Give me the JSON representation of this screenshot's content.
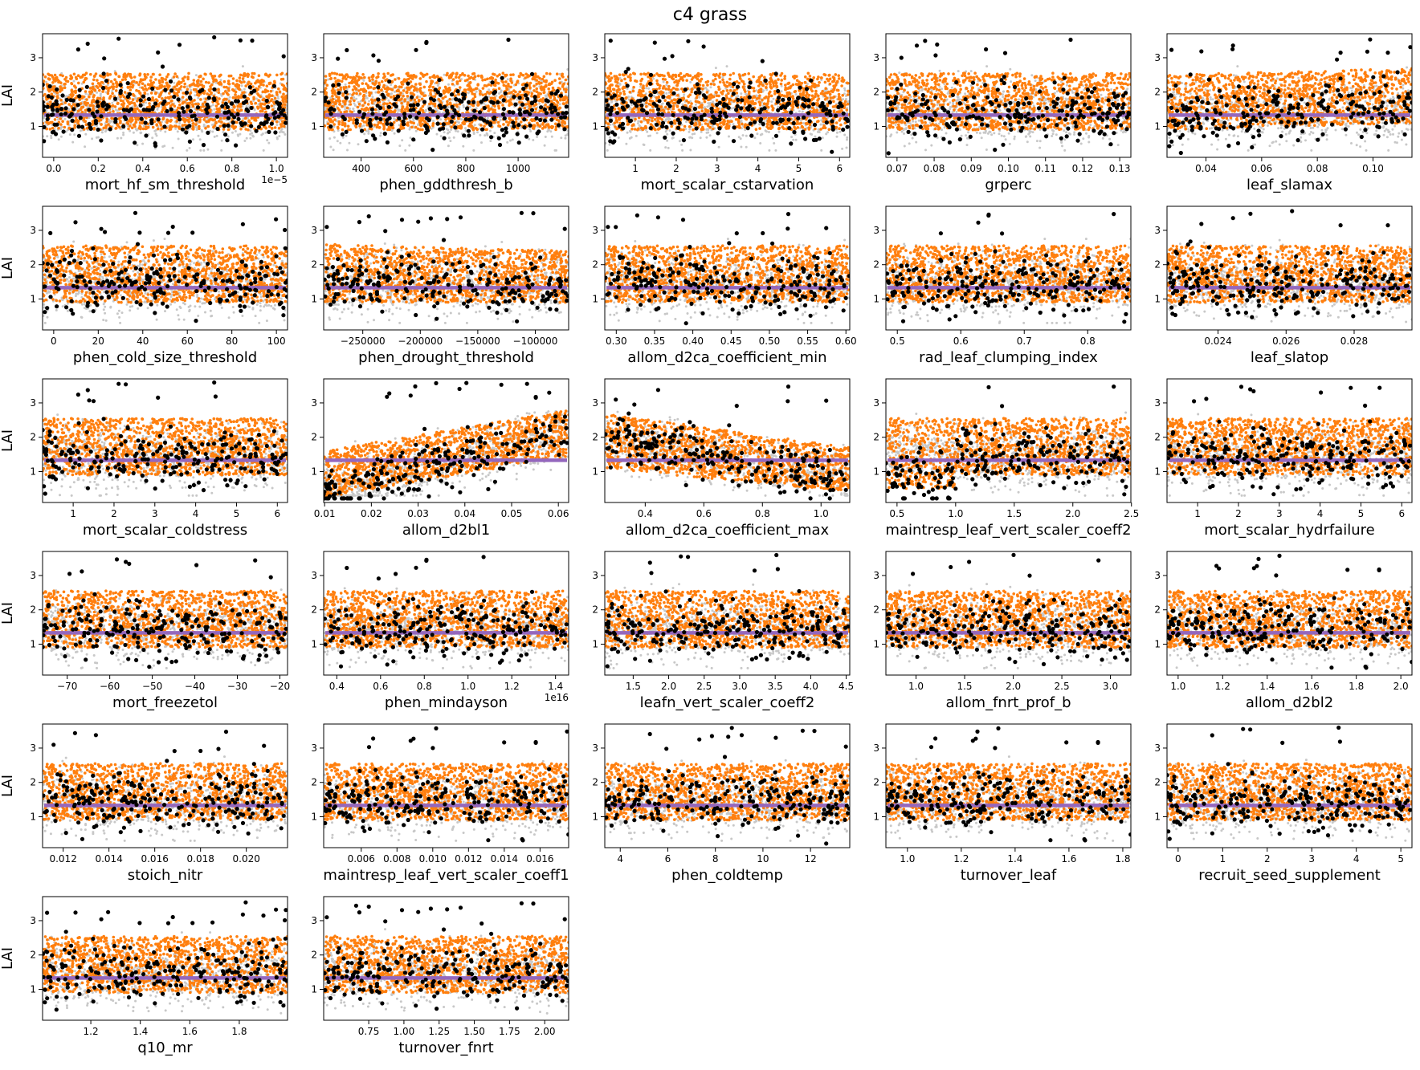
{
  "figure": {
    "title": "c4 grass"
  },
  "colors": {
    "prior": "#c8c8c8",
    "posterior": "#ff7f0e",
    "observed": "#000000",
    "mean": "#9467bd"
  },
  "chart_data": [
    {
      "type": "scatter",
      "xlabel": "mort_hf_sm_threshold",
      "ylabel": "LAI",
      "xlim": [
        -0.05,
        1.05
      ],
      "xticks": [
        0.0,
        0.2,
        0.4,
        0.6,
        0.8,
        1.0
      ],
      "xticklabels": [
        "0.0",
        "0.2",
        "0.4",
        "0.6",
        "0.8",
        "1.0"
      ],
      "offset": "1e−5",
      "ylim": [
        0.1,
        3.7
      ],
      "yticks": [
        1,
        2,
        3
      ],
      "mean": 1.33,
      "trend": "flat"
    },
    {
      "type": "scatter",
      "xlabel": "phen_gddthresh_b",
      "ylabel": "",
      "xlim": [
        257,
        1193
      ],
      "xticks": [
        400,
        600,
        800,
        1000
      ],
      "xticklabels": [
        "400",
        "600",
        "800",
        "1000"
      ],
      "ylim": [
        0.1,
        3.7
      ],
      "yticks": [
        1,
        2,
        3
      ],
      "mean": 1.33,
      "trend": "flat"
    },
    {
      "type": "scatter",
      "xlabel": "mort_scalar_cstarvation",
      "ylabel": "",
      "xlim": [
        0.25,
        6.25
      ],
      "xticks": [
        1,
        2,
        3,
        4,
        5,
        6
      ],
      "xticklabels": [
        "1",
        "2",
        "3",
        "4",
        "5",
        "6"
      ],
      "ylim": [
        0.1,
        3.7
      ],
      "yticks": [
        1,
        2,
        3
      ],
      "mean": 1.33,
      "trend": "flat"
    },
    {
      "type": "scatter",
      "xlabel": "grperc",
      "ylabel": "",
      "xlim": [
        0.067,
        0.133
      ],
      "xticks": [
        0.07,
        0.08,
        0.09,
        0.1,
        0.11,
        0.12,
        0.13
      ],
      "xticklabels": [
        "0.07",
        "0.08",
        "0.09",
        "0.10",
        "0.11",
        "0.12",
        "0.13"
      ],
      "ylim": [
        0.1,
        3.7
      ],
      "yticks": [
        1,
        2,
        3
      ],
      "mean": 1.33,
      "trend": "flat"
    },
    {
      "type": "scatter",
      "xlabel": "leaf_slamax",
      "ylabel": "",
      "xlim": [
        0.026,
        0.114
      ],
      "xticks": [
        0.04,
        0.06,
        0.08,
        0.1
      ],
      "xticklabels": [
        "0.04",
        "0.06",
        "0.08",
        "0.10"
      ],
      "ylim": [
        0.1,
        3.7
      ],
      "yticks": [
        1,
        2,
        3
      ],
      "mean": 1.33,
      "trend": "up-slight"
    },
    {
      "type": "scatter",
      "xlabel": "phen_cold_size_threshold",
      "ylabel": "LAI",
      "xlim": [
        -5,
        105
      ],
      "xticks": [
        0,
        20,
        40,
        60,
        80,
        100
      ],
      "xticklabels": [
        "0",
        "20",
        "40",
        "60",
        "80",
        "100"
      ],
      "ylim": [
        0.1,
        3.7
      ],
      "yticks": [
        1,
        2,
        3
      ],
      "mean": 1.33,
      "trend": "flat"
    },
    {
      "type": "scatter",
      "xlabel": "phen_drought_threshold",
      "ylabel": "",
      "xlim": [
        -284000,
        -71000
      ],
      "xticks": [
        -250000,
        -200000,
        -150000,
        -100000
      ],
      "xticklabels": [
        "−250000",
        "−200000",
        "−150000",
        "−100000"
      ],
      "ylim": [
        0.1,
        3.7
      ],
      "yticks": [
        1,
        2,
        3
      ],
      "mean": 1.33,
      "trend": "down-slight"
    },
    {
      "type": "scatter",
      "xlabel": "allom_d2ca_coefficient_min",
      "ylabel": "",
      "xlim": [
        0.285,
        0.605
      ],
      "xticks": [
        0.3,
        0.35,
        0.4,
        0.45,
        0.5,
        0.55,
        0.6
      ],
      "xticklabels": [
        "0.30",
        "0.35",
        "0.40",
        "0.45",
        "0.50",
        "0.55",
        "0.60"
      ],
      "ylim": [
        0.1,
        3.7
      ],
      "yticks": [
        1,
        2,
        3
      ],
      "mean": 1.33,
      "trend": "flat"
    },
    {
      "type": "scatter",
      "xlabel": "rad_leaf_clumping_index",
      "ylabel": "",
      "xlim": [
        0.482,
        0.868
      ],
      "xticks": [
        0.5,
        0.6,
        0.7,
        0.8
      ],
      "xticklabels": [
        "0.5",
        "0.6",
        "0.7",
        "0.8"
      ],
      "ylim": [
        0.1,
        3.7
      ],
      "yticks": [
        1,
        2,
        3
      ],
      "mean": 1.33,
      "trend": "flat"
    },
    {
      "type": "scatter",
      "xlabel": "leaf_slatop",
      "ylabel": "",
      "xlim": [
        0.0225,
        0.0297
      ],
      "xticks": [
        0.024,
        0.026,
        0.028
      ],
      "xticklabels": [
        "0.024",
        "0.026",
        "0.028"
      ],
      "ylim": [
        0.1,
        3.7
      ],
      "yticks": [
        1,
        2,
        3
      ],
      "mean": 1.33,
      "trend": "flat"
    },
    {
      "type": "scatter",
      "xlabel": "mort_scalar_coldstress",
      "ylabel": "LAI",
      "xlim": [
        0.25,
        6.25
      ],
      "xticks": [
        1,
        2,
        3,
        4,
        5,
        6
      ],
      "xticklabels": [
        "1",
        "2",
        "3",
        "4",
        "5",
        "6"
      ],
      "ylim": [
        0.1,
        3.7
      ],
      "yticks": [
        1,
        2,
        3
      ],
      "mean": 1.33,
      "trend": "flat"
    },
    {
      "type": "scatter",
      "xlabel": "allom_d2bl1",
      "ylabel": "",
      "xlim": [
        0.0098,
        0.0622
      ],
      "xticks": [
        0.01,
        0.02,
        0.03,
        0.04,
        0.05,
        0.06
      ],
      "xticklabels": [
        "0.01",
        "0.02",
        "0.03",
        "0.04",
        "0.05",
        "0.06"
      ],
      "ylim": [
        0.1,
        3.7
      ],
      "yticks": [
        1,
        2,
        3
      ],
      "mean": 1.33,
      "trend": "up-strong"
    },
    {
      "type": "scatter",
      "xlabel": "allom_d2ca_coefficient_max",
      "ylabel": "",
      "xlim": [
        0.262,
        1.098
      ],
      "xticks": [
        0.4,
        0.6,
        0.8,
        1.0
      ],
      "xticklabels": [
        "0.4",
        "0.6",
        "0.8",
        "1.0"
      ],
      "ylim": [
        0.1,
        3.7
      ],
      "yticks": [
        1,
        2,
        3
      ],
      "mean": 1.33,
      "trend": "down-strong"
    },
    {
      "type": "scatter",
      "xlabel": "maintresp_leaf_vert_scaler_coeff2",
      "ylabel": "",
      "xlim": [
        0.405,
        2.495
      ],
      "xticks": [
        0.5,
        1.0,
        1.5,
        2.0,
        2.5
      ],
      "xticklabels": [
        "0.5",
        "1.0",
        "1.5",
        "2.0",
        "2.5"
      ],
      "ylim": [
        0.1,
        3.7
      ],
      "yticks": [
        1,
        2,
        3
      ],
      "mean": 1.33,
      "trend": "up-threshold"
    },
    {
      "type": "scatter",
      "xlabel": "mort_scalar_hydrfailure",
      "ylabel": "",
      "xlim": [
        0.25,
        6.25
      ],
      "xticks": [
        1,
        2,
        3,
        4,
        5,
        6
      ],
      "xticklabels": [
        "1",
        "2",
        "3",
        "4",
        "5",
        "6"
      ],
      "ylim": [
        0.1,
        3.7
      ],
      "yticks": [
        1,
        2,
        3
      ],
      "mean": 1.33,
      "trend": "flat"
    },
    {
      "type": "scatter",
      "xlabel": "mort_freezetol",
      "ylabel": "LAI",
      "xlim": [
        -75.8,
        -18.2
      ],
      "xticks": [
        -70,
        -60,
        -50,
        -40,
        -30,
        -20
      ],
      "xticklabels": [
        "−70",
        "−60",
        "−50",
        "−40",
        "−30",
        "−20"
      ],
      "ylim": [
        0.1,
        3.7
      ],
      "yticks": [
        1,
        2,
        3
      ],
      "mean": 1.33,
      "trend": "flat"
    },
    {
      "type": "scatter",
      "xlabel": "phen_mindayson",
      "ylabel": "",
      "xlim": [
        0.34,
        1.46
      ],
      "xticks": [
        0.4,
        0.6,
        0.8,
        1.0,
        1.2,
        1.4
      ],
      "xticklabels": [
        "0.4",
        "0.6",
        "0.8",
        "1.0",
        "1.2",
        "1.4"
      ],
      "offset": "1e16",
      "ylim": [
        0.1,
        3.7
      ],
      "yticks": [
        1,
        2,
        3
      ],
      "mean": 1.33,
      "trend": "flat"
    },
    {
      "type": "scatter",
      "xlabel": "leafn_vert_scaler_coeff2",
      "ylabel": "",
      "xlim": [
        1.1,
        4.55
      ],
      "xticks": [
        1.5,
        2.0,
        2.5,
        3.0,
        3.5,
        4.0,
        4.5
      ],
      "xticklabels": [
        "1.5",
        "2.0",
        "2.5",
        "3.0",
        "3.5",
        "4.0",
        "4.5"
      ],
      "ylim": [
        0.1,
        3.7
      ],
      "yticks": [
        1,
        2,
        3
      ],
      "mean": 1.33,
      "trend": "flat"
    },
    {
      "type": "scatter",
      "xlabel": "allom_fnrt_prof_b",
      "ylabel": "",
      "xlim": [
        0.69,
        3.21
      ],
      "xticks": [
        1.0,
        1.5,
        2.0,
        2.5,
        3.0
      ],
      "xticklabels": [
        "1.0",
        "1.5",
        "2.0",
        "2.5",
        "3.0"
      ],
      "ylim": [
        0.1,
        3.7
      ],
      "yticks": [
        1,
        2,
        3
      ],
      "mean": 1.33,
      "trend": "flat"
    },
    {
      "type": "scatter",
      "xlabel": "allom_d2bl2",
      "ylabel": "",
      "xlim": [
        0.95,
        2.05
      ],
      "xticks": [
        1.0,
        1.2,
        1.4,
        1.6,
        1.8,
        2.0
      ],
      "xticklabels": [
        "1.0",
        "1.2",
        "1.4",
        "1.6",
        "1.8",
        "2.0"
      ],
      "ylim": [
        0.1,
        3.7
      ],
      "yticks": [
        1,
        2,
        3
      ],
      "mean": 1.33,
      "trend": "flat"
    },
    {
      "type": "scatter",
      "xlabel": "stoich_nitr",
      "ylabel": "LAI",
      "xlim": [
        0.0111,
        0.0218
      ],
      "xticks": [
        0.012,
        0.014,
        0.016,
        0.018,
        0.02
      ],
      "xticklabels": [
        "0.012",
        "0.014",
        "0.016",
        "0.018",
        "0.020"
      ],
      "ylim": [
        0.1,
        3.7
      ],
      "yticks": [
        1,
        2,
        3
      ],
      "mean": 1.33,
      "trend": "flat"
    },
    {
      "type": "scatter",
      "xlabel": "maintresp_leaf_vert_scaler_coeff1",
      "ylabel": "",
      "xlim": [
        0.0039,
        0.0176
      ],
      "xticks": [
        0.006,
        0.008,
        0.01,
        0.012,
        0.014,
        0.016
      ],
      "xticklabels": [
        "0.006",
        "0.008",
        "0.010",
        "0.012",
        "0.014",
        "0.016"
      ],
      "ylim": [
        0.1,
        3.7
      ],
      "yticks": [
        1,
        2,
        3
      ],
      "mean": 1.33,
      "trend": "flat"
    },
    {
      "type": "scatter",
      "xlabel": "phen_coldtemp",
      "ylabel": "",
      "xlim": [
        3.35,
        13.65
      ],
      "xticks": [
        4,
        6,
        8,
        10,
        12
      ],
      "xticklabels": [
        "4",
        "6",
        "8",
        "10",
        "12"
      ],
      "ylim": [
        0.1,
        3.7
      ],
      "yticks": [
        1,
        2,
        3
      ],
      "mean": 1.33,
      "trend": "flat"
    },
    {
      "type": "scatter",
      "xlabel": "turnover_leaf",
      "ylabel": "",
      "xlim": [
        0.92,
        1.83
      ],
      "xticks": [
        1.0,
        1.2,
        1.4,
        1.6,
        1.8
      ],
      "xticklabels": [
        "1.0",
        "1.2",
        "1.4",
        "1.6",
        "1.8"
      ],
      "ylim": [
        0.1,
        3.7
      ],
      "yticks": [
        1,
        2,
        3
      ],
      "mean": 1.33,
      "trend": "flat"
    },
    {
      "type": "scatter",
      "xlabel": "recruit_seed_supplement",
      "ylabel": "",
      "xlim": [
        -0.25,
        5.25
      ],
      "xticks": [
        0,
        1,
        2,
        3,
        4,
        5
      ],
      "xticklabels": [
        "0",
        "1",
        "2",
        "3",
        "4",
        "5"
      ],
      "ylim": [
        0.1,
        3.7
      ],
      "yticks": [
        1,
        2,
        3
      ],
      "mean": 1.33,
      "trend": "flat"
    },
    {
      "type": "scatter",
      "xlabel": "q10_mr",
      "ylabel": "LAI",
      "xlim": [
        1.005,
        1.995
      ],
      "xticks": [
        1.2,
        1.4,
        1.6,
        1.8
      ],
      "xticklabels": [
        "1.2",
        "1.4",
        "1.6",
        "1.8"
      ],
      "ylim": [
        0.1,
        3.7
      ],
      "yticks": [
        1,
        2,
        3
      ],
      "mean": 1.33,
      "trend": "flat"
    },
    {
      "type": "scatter",
      "xlabel": "turnover_fnrt",
      "ylabel": "",
      "xlim": [
        0.43,
        2.17
      ],
      "xticks": [
        0.75,
        1.0,
        1.25,
        1.5,
        1.75,
        2.0
      ],
      "xticklabels": [
        "0.75",
        "1.00",
        "1.25",
        "1.50",
        "1.75",
        "2.00"
      ],
      "ylim": [
        0.1,
        3.7
      ],
      "yticks": [
        1,
        2,
        3
      ],
      "mean": 1.33,
      "trend": "flat"
    }
  ]
}
